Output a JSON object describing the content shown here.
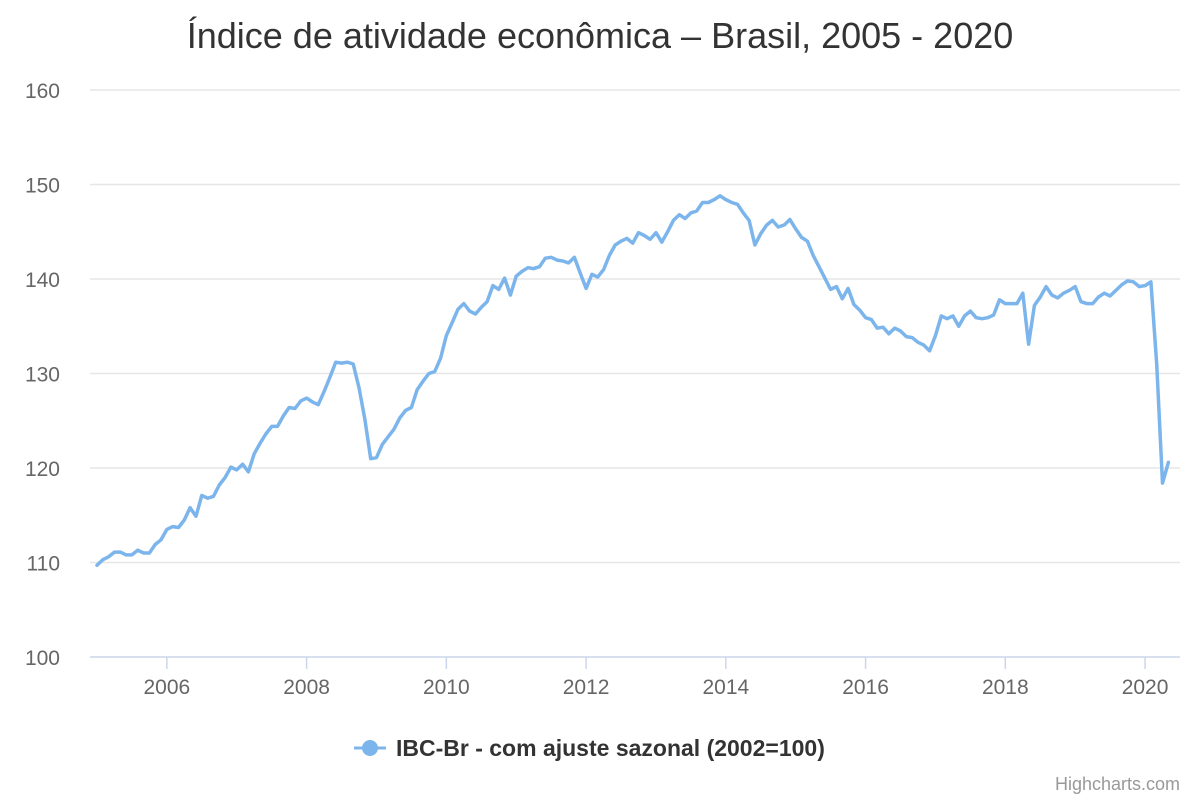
{
  "chart_data": {
    "type": "line",
    "title": "Índice de atividade econômica – Brasil, 2005 - 2020",
    "xlabel": "",
    "ylabel": "",
    "ylim": [
      100,
      160
    ],
    "xlim": [
      2004.9,
      2020.5
    ],
    "yticks": [
      100,
      110,
      120,
      130,
      140,
      150,
      160
    ],
    "yticks_labels": [
      "100",
      "110",
      "120",
      "130",
      "140",
      "150",
      "160"
    ],
    "xticks": [
      2006,
      2008,
      2010,
      2012,
      2014,
      2016,
      2018,
      2020
    ],
    "xticks_labels": [
      "2006",
      "2008",
      "2010",
      "2012",
      "2014",
      "2016",
      "2018",
      "2020"
    ],
    "grid": "horizontal",
    "legend_position": "bottom-center",
    "series": [
      {
        "name": "IBC-Br - com ajuste sazonal (2002=100)",
        "color": "#7cb5ec",
        "start": "2005-01",
        "frequency": "monthly",
        "values": [
          109.7,
          110.3,
          110.6,
          111.1,
          111.1,
          110.8,
          110.8,
          111.3,
          111.0,
          111.0,
          111.9,
          112.4,
          113.5,
          113.8,
          113.7,
          114.5,
          115.8,
          114.9,
          117.1,
          116.8,
          117.0,
          118.2,
          119.0,
          120.1,
          119.8,
          120.4,
          119.6,
          121.5,
          122.6,
          123.6,
          124.4,
          124.4,
          125.5,
          126.4,
          126.3,
          127.1,
          127.4,
          127.0,
          126.7,
          128.1,
          129.6,
          131.2,
          131.1,
          131.2,
          131.0,
          128.5,
          125.2,
          121.0,
          121.1,
          122.5,
          123.3,
          124.1,
          125.3,
          126.1,
          126.4,
          128.3,
          129.2,
          130.0,
          130.2,
          131.6,
          134.0,
          135.4,
          136.8,
          137.4,
          136.6,
          136.3,
          137.0,
          137.6,
          139.3,
          138.9,
          140.1,
          138.3,
          140.3,
          140.8,
          141.2,
          141.1,
          141.3,
          142.2,
          142.3,
          142.0,
          141.9,
          141.7,
          142.3,
          140.6,
          139.0,
          140.5,
          140.2,
          141.0,
          142.5,
          143.6,
          144.0,
          144.3,
          143.8,
          144.9,
          144.6,
          144.2,
          144.9,
          143.9,
          145.0,
          146.2,
          146.8,
          146.4,
          147.0,
          147.2,
          148.1,
          148.1,
          148.4,
          148.8,
          148.4,
          148.1,
          147.9,
          147.0,
          146.2,
          143.6,
          144.8,
          145.7,
          146.2,
          145.5,
          145.7,
          146.3,
          145.3,
          144.4,
          144.0,
          142.5,
          141.3,
          140.1,
          138.9,
          139.2,
          137.9,
          139.0,
          137.3,
          136.7,
          135.9,
          135.7,
          134.8,
          134.9,
          134.2,
          134.8,
          134.5,
          133.9,
          133.8,
          133.3,
          133.0,
          132.4,
          134.0,
          136.1,
          135.8,
          136.1,
          135.0,
          136.1,
          136.6,
          135.9,
          135.8,
          135.9,
          136.2,
          137.8,
          137.4,
          137.4,
          137.4,
          138.5,
          133.1,
          137.2,
          138.1,
          139.2,
          138.3,
          138.0,
          138.5,
          138.8,
          139.2,
          137.6,
          137.4,
          137.4,
          138.1,
          138.5,
          138.2,
          138.8,
          139.4,
          139.8,
          139.7,
          139.2,
          139.3,
          139.7,
          131.0,
          118.4,
          120.6
        ]
      }
    ]
  },
  "credits": "Highcharts.com"
}
